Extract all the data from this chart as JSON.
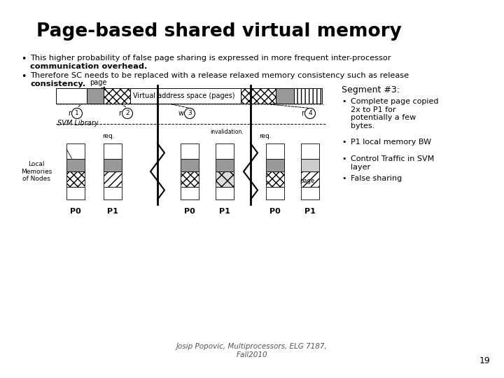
{
  "title": "Page-based shared virtual memory",
  "bullet1_line1": "This higher probability of false page sharing is expressed in more frequent inter-processor",
  "bullet1_line2": "communication overhead.",
  "bullet2_line1": "Therefore SC needs to be replaced with a release relaxed memory consistency such as release",
  "bullet2_line2": "consistency.",
  "segment_title": "Segment #3:",
  "seg_b1": "Complete page copied\n2x to P1 for\npotentially a few\nbytes.",
  "seg_b2": "P1 local memory BW",
  "seg_b3": "Control Traffic in SVM\nlayer",
  "seg_b4": "False sharing",
  "footer": "Josip Popovic, Multiprocessors, ELG 7187,\nFall2010",
  "page_num": "19",
  "bg_color": "#ffffff",
  "text_color": "#000000"
}
